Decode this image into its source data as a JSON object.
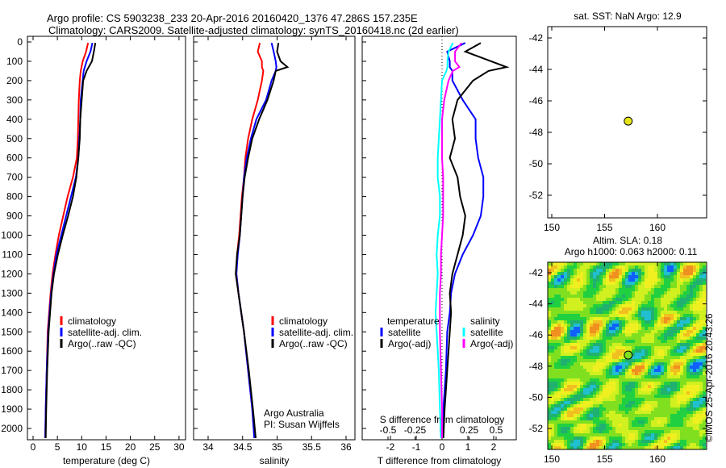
{
  "title": {
    "line1": "Argo profile: CS 5903238_233 20-Apr-2016 20160420_1376 47.286S 157.235E",
    "line2": "Climatology: CARS2009. Satellite-adjusted climatology: synTS_20160418.nc (2d earlier)"
  },
  "colors": {
    "climatology": "#ff0000",
    "satellite": "#0000ff",
    "argo": "#000000",
    "sal_satellite": "#00ffff",
    "sal_argo": "#ff00ff"
  },
  "chart_data": [
    {
      "type": "line",
      "id": "temperature",
      "xlabel": "temperature (deg C)",
      "ylabel": "",
      "xlim": [
        -2,
        31
      ],
      "ylim": [
        2060,
        0
      ],
      "xticks": [
        0,
        5,
        10,
        15,
        20,
        25,
        30
      ],
      "yticks": [
        0,
        100,
        200,
        300,
        400,
        500,
        600,
        700,
        800,
        900,
        1000,
        1100,
        1200,
        1300,
        1400,
        1500,
        1600,
        1700,
        1800,
        1900,
        2000
      ],
      "legend": [
        "climatology",
        "satellite-adj. clim.",
        "Argo(..raw -QC)"
      ],
      "depth": [
        5,
        50,
        100,
        150,
        200,
        300,
        400,
        500,
        600,
        700,
        800,
        900,
        1000,
        1100,
        1200,
        1300,
        1400,
        1500,
        1700,
        1900,
        2050
      ],
      "series": [
        {
          "name": "climatology",
          "color": "#ff0000",
          "values": [
            11.3,
            10.9,
            10.2,
            9.8,
            9.6,
            9.4,
            9.3,
            9.2,
            9.0,
            8.2,
            7.1,
            6.2,
            5.3,
            4.6,
            4.0,
            3.6,
            3.3,
            3.0,
            2.8,
            2.6,
            2.5
          ]
        },
        {
          "name": "satellite-adj. clim.",
          "color": "#0000ff",
          "values": [
            12.2,
            11.8,
            11.0,
            10.4,
            10.2,
            9.8,
            9.7,
            9.5,
            9.3,
            8.8,
            7.8,
            6.8,
            5.8,
            4.8,
            4.2,
            3.7,
            3.4,
            3.1,
            2.8,
            2.6,
            2.5
          ]
        },
        {
          "name": "Argo(..raw -QC)",
          "color": "#000000",
          "values": [
            12.8,
            12.5,
            12.1,
            11.0,
            10.3,
            10.0,
            9.7,
            9.6,
            9.3,
            8.9,
            8.2,
            7.2,
            6.1,
            5.1,
            4.3,
            3.8,
            3.5,
            3.2,
            2.9,
            2.7,
            2.6
          ]
        }
      ]
    },
    {
      "type": "line",
      "id": "salinity",
      "xlabel": "salinity",
      "xlim": [
        33.8,
        36.1
      ],
      "ylim": [
        2060,
        0
      ],
      "xticks": [
        34,
        34.5,
        35,
        35.5,
        36
      ],
      "legend": [
        "climatology",
        "satellite-adj. clim.",
        "Argo(..raw -QC)"
      ],
      "annotation": [
        "Argo Australia",
        "PI: Susan Wijffels"
      ],
      "depth": [
        5,
        50,
        100,
        130,
        150,
        200,
        300,
        400,
        500,
        600,
        700,
        800,
        900,
        1000,
        1100,
        1200,
        1300,
        1400,
        1500,
        1700,
        1900,
        2050
      ],
      "series": [
        {
          "name": "climatology",
          "color": "#ff0000",
          "values": [
            34.75,
            34.72,
            34.78,
            34.78,
            34.8,
            34.78,
            34.72,
            34.64,
            34.58,
            34.54,
            34.52,
            34.49,
            34.47,
            34.45,
            34.42,
            34.41,
            34.44,
            34.48,
            34.52,
            34.58,
            34.64,
            34.67
          ]
        },
        {
          "name": "satellite-adj. clim.",
          "color": "#0000ff",
          "values": [
            34.92,
            34.95,
            34.98,
            34.99,
            34.98,
            34.92,
            34.84,
            34.7,
            34.62,
            34.56,
            34.52,
            34.5,
            34.48,
            34.46,
            34.43,
            34.41,
            34.44,
            34.48,
            34.52,
            34.58,
            34.64,
            34.67
          ]
        },
        {
          "name": "Argo(..raw -QC)",
          "color": "#000000",
          "values": [
            35.02,
            35.0,
            35.05,
            35.15,
            34.98,
            34.95,
            34.86,
            34.74,
            34.64,
            34.58,
            34.53,
            34.5,
            34.48,
            34.46,
            34.42,
            34.4,
            34.44,
            34.48,
            34.52,
            34.59,
            34.65,
            34.69
          ]
        }
      ]
    },
    {
      "type": "line",
      "id": "difference",
      "xlabel": "T difference from climatology",
      "x2label": "S difference from climatology",
      "xlim": [
        -3.1,
        3.0
      ],
      "x2lim": [
        -0.775,
        0.75
      ],
      "ylim": [
        2060,
        0
      ],
      "xticks": [
        -2,
        -1,
        0,
        1,
        2
      ],
      "x2ticks": [
        -0.5,
        -0.25,
        0,
        0.25,
        0.5
      ],
      "legend_headers": [
        "temperature",
        "salinity"
      ],
      "legend": [
        "satellite",
        "Argo(-adj)",
        "satellite",
        "Argo(-adj)"
      ],
      "depth": [
        5,
        50,
        100,
        130,
        150,
        200,
        300,
        400,
        500,
        600,
        700,
        800,
        900,
        1000,
        1100,
        1200,
        1300,
        1400,
        1500,
        1700,
        1900,
        2050
      ],
      "series": [
        {
          "name": "T satellite",
          "color": "#0000ff",
          "axis": "T",
          "values": [
            0.9,
            0.2,
            0.3,
            0.3,
            0.4,
            0.4,
            0.8,
            1.3,
            1.3,
            1.4,
            1.6,
            1.6,
            1.5,
            1.2,
            0.8,
            0.5,
            0.35,
            0.3,
            0.2,
            0.15,
            0.05,
            0.0
          ]
        },
        {
          "name": "T Argo(-adj)",
          "color": "#000000",
          "axis": "T",
          "values": [
            1.5,
            0.9,
            1.9,
            2.5,
            1.8,
            1.2,
            0.6,
            0.4,
            0.5,
            0.3,
            0.6,
            0.7,
            0.9,
            0.8,
            0.6,
            0.4,
            0.3,
            0.35,
            0.3,
            0.2,
            0.1,
            0.05
          ]
        },
        {
          "name": "S satellite",
          "color": "#00ffff",
          "axis": "S",
          "values": [
            0.1,
            0.06,
            0.05,
            0.05,
            0.04,
            0.0,
            -0.01,
            -0.02,
            -0.03,
            -0.04,
            -0.04,
            -0.02,
            -0.02,
            -0.04,
            -0.05,
            -0.04,
            -0.05,
            -0.06,
            -0.05,
            -0.03,
            -0.02,
            -0.01
          ]
        },
        {
          "name": "S Argo(-adj)",
          "color": "#ff00ff",
          "axis": "S",
          "values": [
            0.18,
            0.12,
            0.12,
            0.16,
            0.1,
            0.06,
            0.02,
            0.0,
            0.0,
            0.0,
            0.01,
            0.01,
            0.01,
            0.0,
            -0.01,
            -0.01,
            -0.02,
            -0.02,
            -0.02,
            -0.01,
            0.0,
            0.0
          ]
        }
      ]
    },
    {
      "type": "scatter",
      "id": "sst-map",
      "title": "sat. SST: NaN Argo: 12.9",
      "xlim": [
        149.6,
        164.6
      ],
      "ylim": [
        -41.3,
        -53.5
      ],
      "xticks": [
        150,
        155,
        160
      ],
      "yticks": [
        -42,
        -44,
        -46,
        -48,
        -50,
        -52
      ],
      "points": [
        {
          "lon": 157.235,
          "lat": -47.286,
          "color": "#e5e51a"
        }
      ]
    },
    {
      "type": "heatmap",
      "id": "sla-map",
      "title": [
        "Altim. SLA: 0.18",
        "Argo h1000: 0.063 h2000: 0.11"
      ],
      "xlim": [
        149.6,
        164.6
      ],
      "ylim": [
        -41.3,
        -53.3
      ],
      "xticks": [
        150,
        155,
        160
      ],
      "yticks": [
        -42,
        -44,
        -46,
        -48,
        -50,
        -52
      ],
      "points": [
        {
          "lon": 157.235,
          "lat": -47.286,
          "color": "#80e020"
        }
      ]
    }
  ],
  "footer": {
    "copyright": "©IMOS 25-Apr-2016 20:43:26"
  }
}
